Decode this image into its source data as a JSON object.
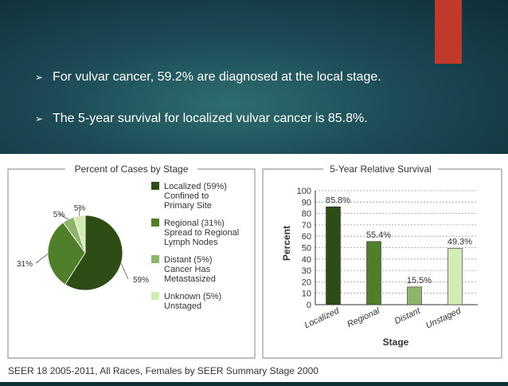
{
  "bullets": [
    "For vulvar cancer, 59.2% are diagnosed at the local stage.",
    "The 5-year survival for localized vulvar cancer is 85.8%."
  ],
  "bullet_symbol": "➢",
  "colors": {
    "localized": "#2d4d14",
    "regional": "#4f7f28",
    "distant": "#8fb46b",
    "unknown": "#d3ecb4",
    "accent_red": "#c0392b"
  },
  "footer": "SEER 18 2005-2011, All Races, Females by SEER Summary Stage 2000",
  "chart_data": [
    {
      "type": "pie",
      "title": "Percent of Cases by Stage",
      "slices": [
        {
          "key": "localized",
          "value": 59,
          "label": "59%",
          "legend": [
            "Localized (59%)",
            "Confined to",
            "Primary Site"
          ]
        },
        {
          "key": "regional",
          "value": 31,
          "label": "31%",
          "legend": [
            "Regional (31%)",
            "Spread to Regional",
            "Lymph Nodes"
          ]
        },
        {
          "key": "distant",
          "value": 5,
          "label": "5%",
          "legend": [
            "Distant (5%)",
            "Cancer Has",
            "Metastasized"
          ]
        },
        {
          "key": "unknown",
          "value": 5,
          "label": "5%",
          "legend": [
            "Unknown (5%)",
            "Unstaged"
          ]
        }
      ]
    },
    {
      "type": "bar",
      "title": "5-Year Relative Survival",
      "xlabel": "Stage",
      "ylabel": "Percent",
      "ylim": [
        0,
        100
      ],
      "yticks": [
        0,
        10,
        20,
        30,
        40,
        50,
        60,
        70,
        80,
        90,
        100
      ],
      "categories": [
        "Localized",
        "Regional",
        "Distant",
        "Unstaged"
      ],
      "values": [
        85.8,
        55.4,
        15.5,
        49.3
      ],
      "value_labels": [
        "85.8%",
        "55.4%",
        "15.5%",
        "49.3%"
      ],
      "grid": true
    }
  ]
}
